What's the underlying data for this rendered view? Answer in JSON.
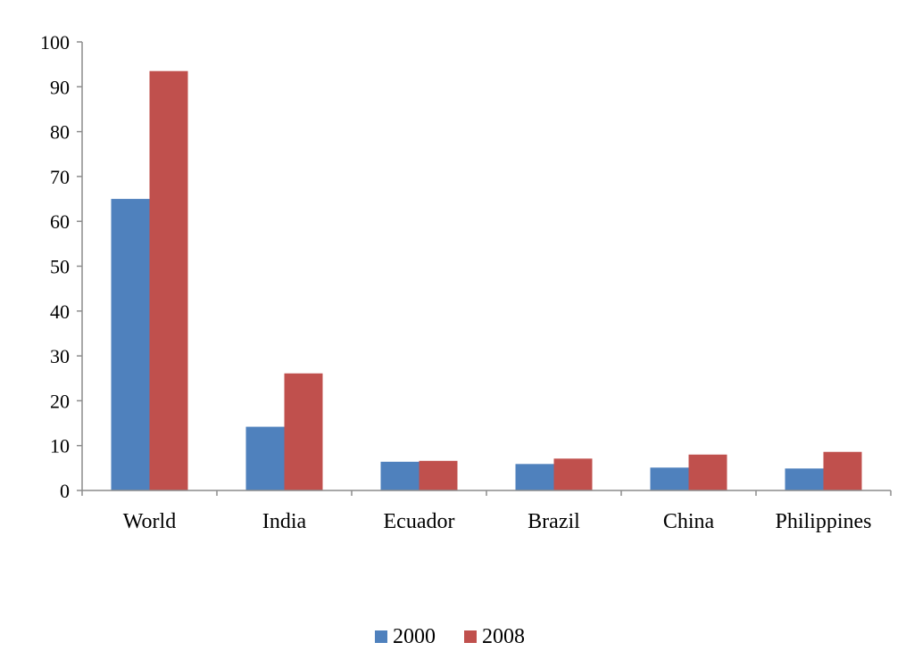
{
  "chart_data": {
    "type": "bar",
    "title": "",
    "xlabel": "",
    "ylabel": "",
    "ylim": [
      0,
      100
    ],
    "yticks": [
      0,
      10,
      20,
      30,
      40,
      50,
      60,
      70,
      80,
      90,
      100
    ],
    "ytick_labels": [
      "0",
      "10",
      "20",
      "30",
      "40",
      "50",
      "60",
      "70",
      "80",
      "90",
      "100"
    ],
    "categories": [
      "World",
      "India",
      "Ecuador",
      "Brazil",
      "China",
      "Philippines"
    ],
    "series": [
      {
        "name": "2000",
        "color": "#4f81bd",
        "values": [
          65,
          14.2,
          6.4,
          5.9,
          5.1,
          4.9
        ]
      },
      {
        "name": "2008",
        "color": "#c0504d",
        "values": [
          93.5,
          26.1,
          6.6,
          7.1,
          8.0,
          8.6
        ]
      }
    ],
    "grid": false,
    "legend_position": "bottom"
  }
}
